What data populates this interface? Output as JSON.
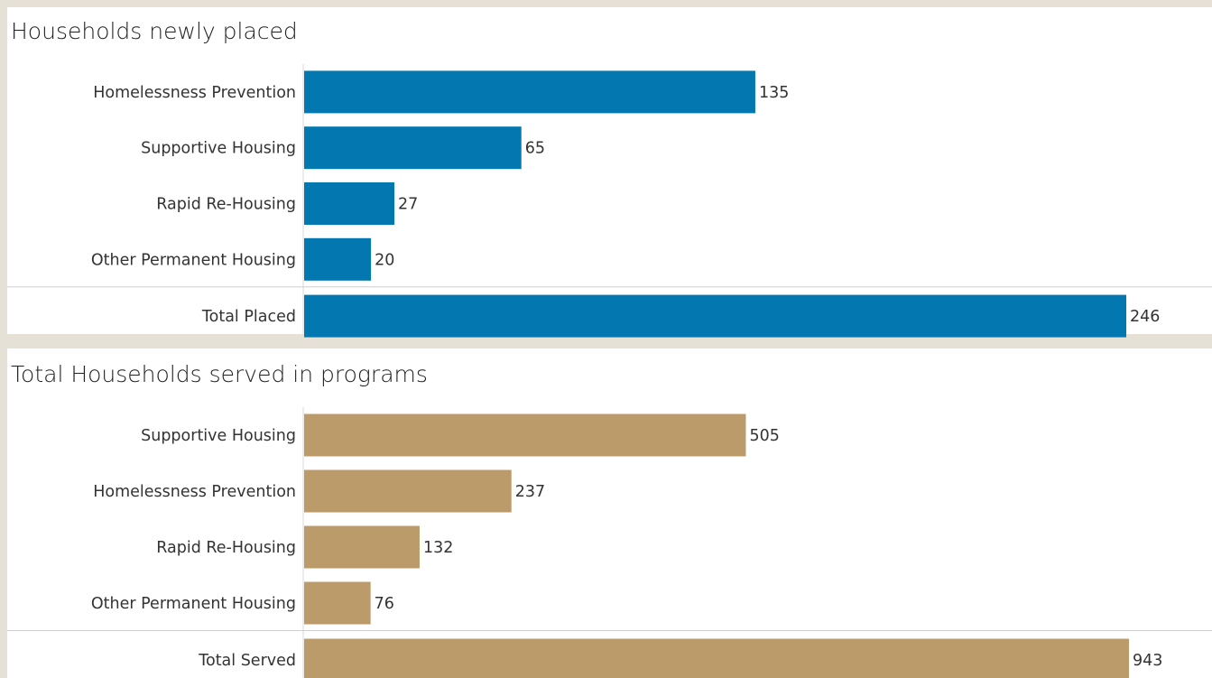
{
  "chart_data": [
    {
      "type": "bar",
      "orientation": "horizontal",
      "title": "Households newly placed",
      "categories": [
        "Homelessness Prevention",
        "Supportive Housing",
        "Rapid Re-Housing",
        "Other Permanent Housing",
        "Total Placed"
      ],
      "values": [
        135,
        65,
        27,
        20,
        246
      ],
      "value_labels": [
        "135",
        "65",
        "27",
        "20",
        "246"
      ],
      "color": "#0277b0",
      "total_separated": true
    },
    {
      "type": "bar",
      "orientation": "horizontal",
      "title": "Total Households served in programs",
      "categories": [
        "Supportive Housing",
        "Homelessness Prevention",
        "Rapid Re-Housing",
        "Other Permanent Housing",
        "Total Served"
      ],
      "values": [
        505,
        237,
        132,
        76,
        943
      ],
      "value_labels": [
        "505",
        "237",
        "132",
        "76",
        "943"
      ],
      "color": "#bc9b6a",
      "total_separated": true
    }
  ]
}
